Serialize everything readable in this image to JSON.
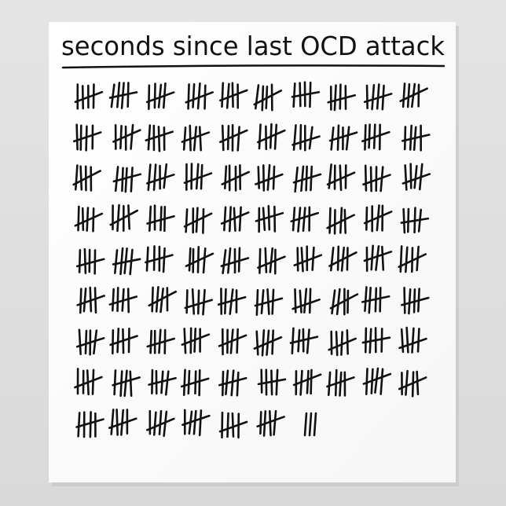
{
  "title": "seconds since last OCD attack",
  "tally": {
    "groups_per_row": [
      10,
      10,
      10,
      10,
      10,
      10,
      10,
      10,
      6
    ],
    "strokes_per_group": 5,
    "remainder_strokes": 3
  }
}
